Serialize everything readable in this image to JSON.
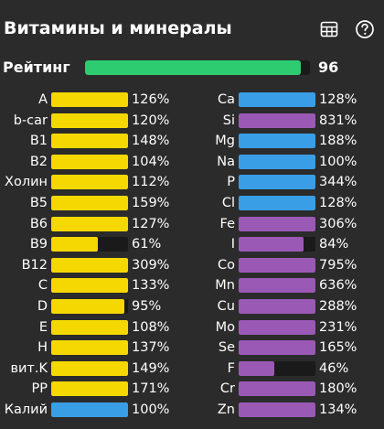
{
  "header": {
    "title": "Витамины и минералы",
    "table_icon": "table-grid-icon",
    "help_icon": "question-circle-icon"
  },
  "rating": {
    "label": "Рейтинг",
    "value": "96",
    "fraction": 0.96,
    "color": "#2ecc71"
  },
  "colors": {
    "yellow": "#f5d800",
    "blue": "#3a9ee6",
    "purple": "#9b59b6",
    "track": "#1a1a1a",
    "background": "#2b2b2b"
  },
  "left_items": [
    {
      "label": "A",
      "pct": "126%",
      "fill": 1.0,
      "color": "yellow"
    },
    {
      "label": "b-car",
      "pct": "120%",
      "fill": 1.0,
      "color": "yellow"
    },
    {
      "label": "B1",
      "pct": "148%",
      "fill": 1.0,
      "color": "yellow"
    },
    {
      "label": "B2",
      "pct": "104%",
      "fill": 1.0,
      "color": "yellow"
    },
    {
      "label": "Холин",
      "pct": "112%",
      "fill": 1.0,
      "color": "yellow"
    },
    {
      "label": "B5",
      "pct": "159%",
      "fill": 1.0,
      "color": "yellow"
    },
    {
      "label": "B6",
      "pct": "127%",
      "fill": 1.0,
      "color": "yellow"
    },
    {
      "label": "B9",
      "pct": "61%",
      "fill": 0.61,
      "color": "yellow"
    },
    {
      "label": "B12",
      "pct": "309%",
      "fill": 1.0,
      "color": "yellow"
    },
    {
      "label": "C",
      "pct": "133%",
      "fill": 1.0,
      "color": "yellow"
    },
    {
      "label": "D",
      "pct": "95%",
      "fill": 0.95,
      "color": "yellow"
    },
    {
      "label": "E",
      "pct": "108%",
      "fill": 1.0,
      "color": "yellow"
    },
    {
      "label": "H",
      "pct": "137%",
      "fill": 1.0,
      "color": "yellow"
    },
    {
      "label": "вит.K",
      "pct": "149%",
      "fill": 1.0,
      "color": "yellow"
    },
    {
      "label": "PP",
      "pct": "171%",
      "fill": 1.0,
      "color": "yellow"
    },
    {
      "label": "Калий",
      "pct": "100%",
      "fill": 1.0,
      "color": "blue"
    }
  ],
  "right_items": [
    {
      "label": "Ca",
      "pct": "128%",
      "fill": 1.0,
      "color": "blue"
    },
    {
      "label": "Si",
      "pct": "831%",
      "fill": 1.0,
      "color": "purple"
    },
    {
      "label": "Mg",
      "pct": "188%",
      "fill": 1.0,
      "color": "blue"
    },
    {
      "label": "Na",
      "pct": "100%",
      "fill": 1.0,
      "color": "blue"
    },
    {
      "label": "P",
      "pct": "344%",
      "fill": 1.0,
      "color": "blue"
    },
    {
      "label": "Cl",
      "pct": "128%",
      "fill": 1.0,
      "color": "blue"
    },
    {
      "label": "Fe",
      "pct": "306%",
      "fill": 1.0,
      "color": "purple"
    },
    {
      "label": "I",
      "pct": "84%",
      "fill": 0.84,
      "color": "purple"
    },
    {
      "label": "Co",
      "pct": "795%",
      "fill": 1.0,
      "color": "purple"
    },
    {
      "label": "Mn",
      "pct": "636%",
      "fill": 1.0,
      "color": "purple"
    },
    {
      "label": "Cu",
      "pct": "288%",
      "fill": 1.0,
      "color": "purple"
    },
    {
      "label": "Mo",
      "pct": "231%",
      "fill": 1.0,
      "color": "purple"
    },
    {
      "label": "Se",
      "pct": "165%",
      "fill": 1.0,
      "color": "purple"
    },
    {
      "label": "F",
      "pct": "46%",
      "fill": 0.46,
      "color": "purple"
    },
    {
      "label": "Cr",
      "pct": "180%",
      "fill": 1.0,
      "color": "purple"
    },
    {
      "label": "Zn",
      "pct": "134%",
      "fill": 1.0,
      "color": "purple"
    }
  ]
}
